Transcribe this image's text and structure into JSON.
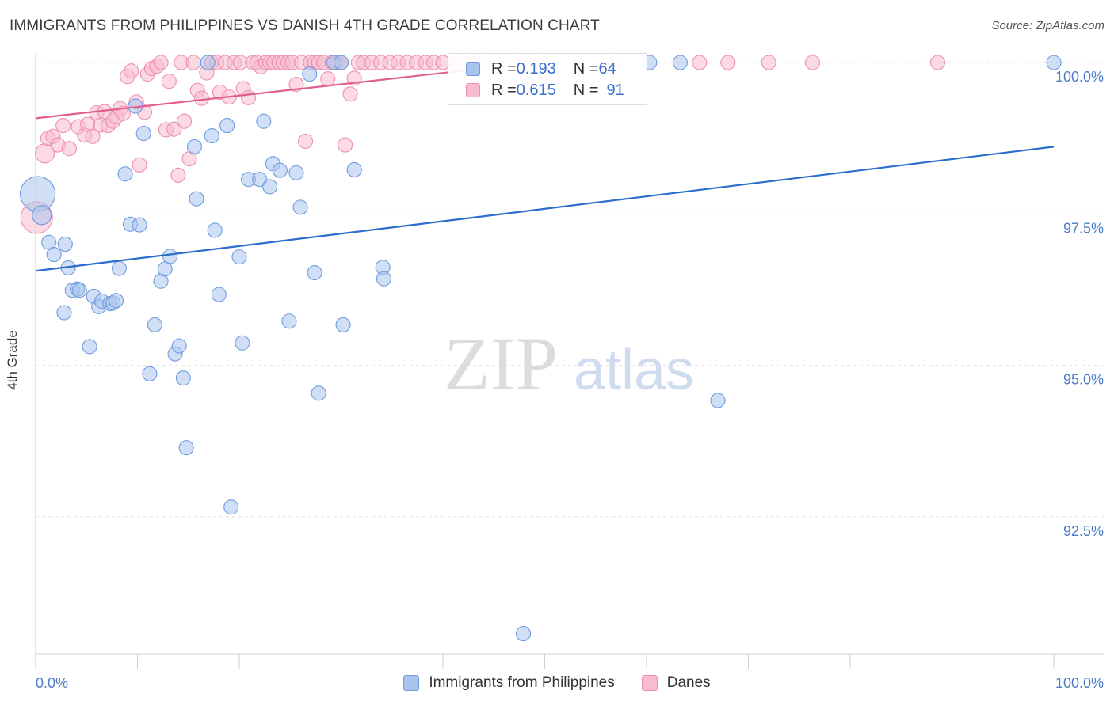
{
  "header": {
    "title": "IMMIGRANTS FROM PHILIPPINES VS DANISH 4TH GRADE CORRELATION CHART",
    "source": "Source: ZipAtlas.com"
  },
  "watermark": {
    "zip": "ZIP",
    "atlas": "atlas"
  },
  "legend": {
    "rows": [
      {
        "r_label": "R = ",
        "r_value": "0.193",
        "n_label": "N = ",
        "n_value": "64",
        "color": "#a9c4ec",
        "stroke": "#6f9be0"
      },
      {
        "r_label": "R = ",
        "r_value": "0.615",
        "n_label": "N = ",
        "n_value": "91",
        "color": "#f7bcd0",
        "stroke": "#ee8fb0"
      }
    ]
  },
  "bottom_legend": {
    "items": [
      {
        "label": "Immigrants from Philippines",
        "color": "#a9c4ec",
        "stroke": "#6f9be0"
      },
      {
        "label": "Danes",
        "color": "#f7bcd0",
        "stroke": "#ee8fb0"
      }
    ]
  },
  "chart_data": {
    "type": "scatter",
    "title": "IMMIGRANTS FROM PHILIPPINES VS DANISH 4TH GRADE CORRELATION CHART",
    "xlabel": "",
    "ylabel": "4th Grade",
    "xlim": [
      0,
      100
    ],
    "ylim": [
      90.3,
      100.35
    ],
    "x_tick_labels": [
      "0.0%",
      "100.0%"
    ],
    "y_ticks": [
      {
        "value": 100.0,
        "label": "100.0%"
      },
      {
        "value": 97.5,
        "label": "97.5%"
      },
      {
        "value": 95.0,
        "label": "95.0%"
      },
      {
        "value": 92.5,
        "label": "92.5%"
      }
    ],
    "grid": true,
    "legend_position": "top-center",
    "series": [
      {
        "name": "Immigrants from Philippines",
        "color": "#a9c4ec",
        "stroke": "#6f9be0",
        "line_color": "#2a6dcc",
        "trend": [
          [
            0,
            96.56
          ],
          [
            100,
            98.61
          ]
        ],
        "points": [
          [
            0.2,
            97.83,
            22
          ],
          [
            0.6,
            97.48,
            12
          ],
          [
            1.3,
            97.03,
            9
          ],
          [
            1.8,
            96.83,
            9
          ],
          [
            2.8,
            95.87,
            9
          ],
          [
            2.9,
            97.0,
            9
          ],
          [
            3.2,
            96.61,
            9
          ],
          [
            3.6,
            96.24,
            9
          ],
          [
            4.1,
            96.26,
            9
          ],
          [
            4.3,
            96.24,
            9
          ],
          [
            5.3,
            95.31,
            9
          ],
          [
            5.7,
            96.14,
            9
          ],
          [
            6.2,
            95.97,
            9
          ],
          [
            6.5,
            96.06,
            9
          ],
          [
            7.3,
            96.02,
            9
          ],
          [
            7.6,
            96.03,
            9
          ],
          [
            7.9,
            96.07,
            9
          ],
          [
            8.2,
            96.6,
            9
          ],
          [
            8.8,
            98.16,
            9
          ],
          [
            9.3,
            97.33,
            9
          ],
          [
            9.8,
            99.28,
            9
          ],
          [
            10.2,
            97.32,
            9
          ],
          [
            10.6,
            98.83,
            9
          ],
          [
            11.2,
            94.86,
            9
          ],
          [
            11.7,
            95.67,
            9
          ],
          [
            12.3,
            96.39,
            9
          ],
          [
            12.7,
            96.59,
            9
          ],
          [
            13.2,
            96.8,
            9
          ],
          [
            13.7,
            95.19,
            9
          ],
          [
            14.1,
            95.32,
            9
          ],
          [
            14.5,
            94.79,
            9
          ],
          [
            14.8,
            93.64,
            9
          ],
          [
            15.6,
            98.61,
            9
          ],
          [
            15.8,
            97.75,
            9
          ],
          [
            16.9,
            100.0,
            9
          ],
          [
            17.3,
            98.79,
            9
          ],
          [
            17.6,
            97.23,
            9
          ],
          [
            18.0,
            96.17,
            9
          ],
          [
            18.8,
            98.96,
            9
          ],
          [
            19.2,
            92.66,
            9
          ],
          [
            20.0,
            96.79,
            9
          ],
          [
            20.3,
            95.37,
            9
          ],
          [
            20.9,
            98.07,
            9
          ],
          [
            22.0,
            98.07,
            9
          ],
          [
            22.4,
            99.03,
            9
          ],
          [
            23.0,
            97.95,
            9
          ],
          [
            23.3,
            98.33,
            9
          ],
          [
            24.0,
            98.22,
            9
          ],
          [
            24.9,
            95.73,
            9
          ],
          [
            25.6,
            98.18,
            9
          ],
          [
            26.0,
            97.61,
            9
          ],
          [
            26.9,
            99.81,
            9
          ],
          [
            27.4,
            96.53,
            9
          ],
          [
            27.8,
            94.54,
            9
          ],
          [
            29.3,
            100.0,
            9
          ],
          [
            30.0,
            100.0,
            9
          ],
          [
            30.2,
            95.67,
            9
          ],
          [
            31.3,
            98.23,
            9
          ],
          [
            34.1,
            96.62,
            9
          ],
          [
            34.2,
            96.43,
            9
          ],
          [
            47.9,
            90.57,
            9
          ],
          [
            60.3,
            100.0,
            9
          ],
          [
            63.3,
            100.0,
            9
          ],
          [
            67.0,
            94.42,
            9
          ],
          [
            100.0,
            100.0,
            9
          ]
        ]
      },
      {
        "name": "Danes",
        "color": "#f7bcd0",
        "stroke": "#ee8fb0",
        "line_color": "#e05f8f",
        "trend": [
          [
            0,
            99.08
          ],
          [
            43.3,
            99.89
          ]
        ],
        "points": [
          [
            0.1,
            97.44,
            20
          ],
          [
            0.9,
            98.5,
            12
          ],
          [
            1.2,
            98.75,
            9
          ],
          [
            1.7,
            98.78,
            9
          ],
          [
            2.2,
            98.64,
            9
          ],
          [
            2.7,
            98.96,
            9
          ],
          [
            3.3,
            98.58,
            9
          ],
          [
            4.2,
            98.94,
            9
          ],
          [
            4.8,
            98.8,
            9
          ],
          [
            5.1,
            98.98,
            9
          ],
          [
            5.6,
            98.78,
            9
          ],
          [
            6.0,
            99.17,
            9
          ],
          [
            6.4,
            98.97,
            9
          ],
          [
            6.8,
            99.19,
            9
          ],
          [
            7.1,
            98.96,
            9
          ],
          [
            7.6,
            99.03,
            9
          ],
          [
            7.9,
            99.1,
            9
          ],
          [
            8.3,
            99.24,
            9
          ],
          [
            8.6,
            99.16,
            9
          ],
          [
            9.0,
            99.77,
            9
          ],
          [
            9.4,
            99.86,
            9
          ],
          [
            9.9,
            99.35,
            9
          ],
          [
            10.2,
            98.31,
            9
          ],
          [
            10.7,
            99.18,
            9
          ],
          [
            11.0,
            99.81,
            9
          ],
          [
            11.4,
            99.9,
            9
          ],
          [
            11.9,
            99.94,
            9
          ],
          [
            12.3,
            100.0,
            9
          ],
          [
            12.8,
            98.89,
            9
          ],
          [
            13.1,
            99.69,
            9
          ],
          [
            13.6,
            98.9,
            9
          ],
          [
            14.0,
            98.14,
            9
          ],
          [
            14.3,
            100.0,
            9
          ],
          [
            14.6,
            99.03,
            9
          ],
          [
            15.1,
            98.41,
            9
          ],
          [
            15.5,
            100.0,
            9
          ],
          [
            15.9,
            99.54,
            9
          ],
          [
            16.3,
            99.41,
            9
          ],
          [
            16.8,
            99.83,
            9
          ],
          [
            17.3,
            100.0,
            9
          ],
          [
            17.8,
            100.0,
            9
          ],
          [
            18.1,
            99.51,
            9
          ],
          [
            18.6,
            100.0,
            9
          ],
          [
            19.0,
            99.43,
            9
          ],
          [
            19.5,
            100.0,
            9
          ],
          [
            20.1,
            100.0,
            9
          ],
          [
            20.4,
            99.57,
            9
          ],
          [
            20.9,
            99.42,
            9
          ],
          [
            21.3,
            100.0,
            9
          ],
          [
            21.7,
            100.0,
            9
          ],
          [
            22.1,
            99.93,
            9
          ],
          [
            22.6,
            100.0,
            9
          ],
          [
            23.0,
            100.0,
            9
          ],
          [
            23.4,
            100.0,
            9
          ],
          [
            23.9,
            100.0,
            9
          ],
          [
            24.3,
            100.0,
            9
          ],
          [
            24.8,
            100.0,
            9
          ],
          [
            25.2,
            100.0,
            9
          ],
          [
            25.6,
            99.64,
            9
          ],
          [
            26.1,
            100.0,
            9
          ],
          [
            26.5,
            98.7,
            9
          ],
          [
            27.0,
            100.0,
            9
          ],
          [
            27.4,
            100.0,
            9
          ],
          [
            27.8,
            100.0,
            9
          ],
          [
            28.3,
            100.0,
            9
          ],
          [
            28.7,
            99.73,
            9
          ],
          [
            29.1,
            100.0,
            9
          ],
          [
            29.6,
            100.0,
            9
          ],
          [
            30.0,
            100.0,
            9
          ],
          [
            30.4,
            98.64,
            9
          ],
          [
            30.9,
            99.48,
            9
          ],
          [
            31.3,
            99.74,
            9
          ],
          [
            31.7,
            100.0,
            9
          ],
          [
            32.2,
            100.0,
            9
          ],
          [
            33.0,
            100.0,
            9
          ],
          [
            33.9,
            100.0,
            9
          ],
          [
            34.8,
            100.0,
            9
          ],
          [
            35.6,
            100.0,
            9
          ],
          [
            36.5,
            100.0,
            9
          ],
          [
            37.4,
            100.0,
            9
          ],
          [
            38.3,
            100.0,
            9
          ],
          [
            39.1,
            100.0,
            9
          ],
          [
            40.0,
            100.0,
            9
          ],
          [
            41.2,
            100.0,
            9
          ],
          [
            42.6,
            100.0,
            9
          ],
          [
            44.0,
            100.0,
            9
          ],
          [
            46.8,
            100.0,
            9
          ],
          [
            49.6,
            100.0,
            9
          ],
          [
            56.9,
            100.0,
            9
          ],
          [
            65.2,
            100.0,
            9
          ],
          [
            68.0,
            100.0,
            9
          ],
          [
            72.0,
            100.0,
            9
          ],
          [
            76.3,
            100.0,
            9
          ],
          [
            88.6,
            100.0,
            9
          ]
        ]
      }
    ]
  }
}
